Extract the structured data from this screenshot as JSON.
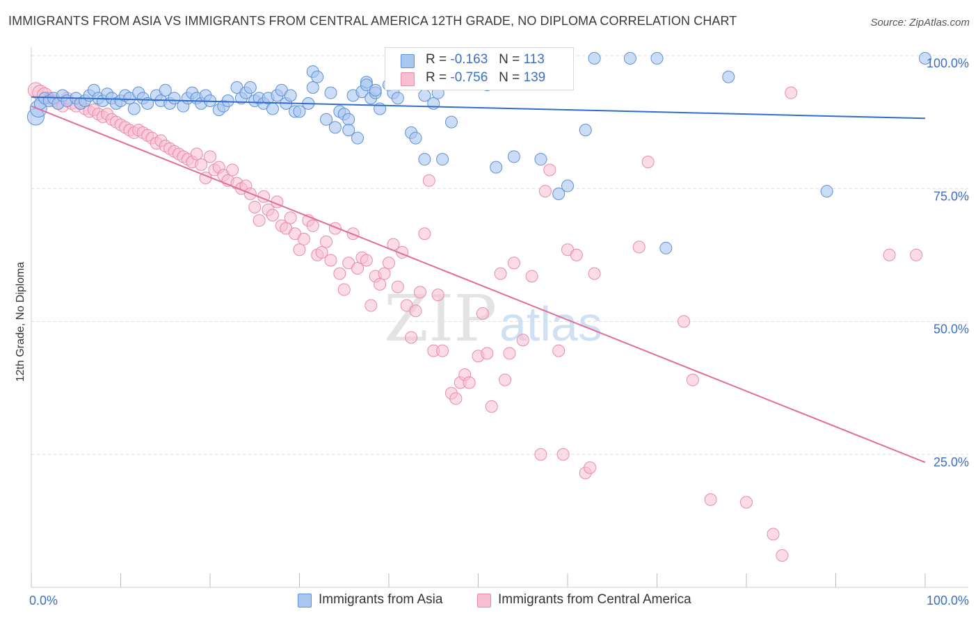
{
  "header": {
    "title": "IMMIGRANTS FROM ASIA VS IMMIGRANTS FROM CENTRAL AMERICA 12TH GRADE, NO DIPLOMA CORRELATION CHART",
    "source": "Source: ZipAtlas.com"
  },
  "watermark": {
    "zip": "ZIP",
    "atlas": "atlas"
  },
  "legend_top": {
    "rows": [
      {
        "r_label": "R =",
        "r_value": "-0.163",
        "n_label": "N =",
        "n_value": "113"
      },
      {
        "r_label": "R =",
        "r_value": "-0.756",
        "n_label": "N =",
        "n_value": "139"
      }
    ]
  },
  "legend_bottom": {
    "items": [
      "Immigrants from Asia",
      "Immigrants from Central America"
    ]
  },
  "colors": {
    "asia_fill": "#a9c6f0",
    "asia_stroke": "#5b8fd6",
    "asia_line": "#2e6ccf",
    "ca_fill": "#f8bfd2",
    "ca_stroke": "#e98aa9",
    "ca_line": "#e36b98",
    "grid": "#dddddd",
    "axis_text": "#3a6fc4"
  },
  "chart_data": {
    "type": "scatter",
    "title": "IMMIGRANTS FROM ASIA VS IMMIGRANTS FROM CENTRAL AMERICA 12TH GRADE, NO DIPLOMA CORRELATION CHART",
    "xlabel": "",
    "ylabel": "12th Grade, No Diploma",
    "xlim": [
      0,
      100
    ],
    "ylim": [
      0,
      100
    ],
    "x_tick_labels": [
      "0.0%",
      "100.0%"
    ],
    "y_ticks": [
      25,
      50,
      75,
      100
    ],
    "y_tick_labels": [
      "25.0%",
      "50.0%",
      "75.0%",
      "100.0%"
    ],
    "grid": true,
    "legend_position": "top-center",
    "series": [
      {
        "name": "Immigrants from Asia",
        "R": -0.163,
        "N": 113,
        "trend": {
          "x": [
            0,
            100
          ],
          "y": [
            92.2,
            88.2
          ]
        },
        "points": [
          [
            0.5,
            88.5
          ],
          [
            0.8,
            90
          ],
          [
            1,
            91
          ],
          [
            1.5,
            92
          ],
          [
            2,
            91.5
          ],
          [
            2.5,
            92
          ],
          [
            3,
            91
          ],
          [
            3.5,
            92.5
          ],
          [
            4,
            91.5
          ],
          [
            5,
            92
          ],
          [
            5.5,
            91
          ],
          [
            6,
            91.5
          ],
          [
            6.5,
            92.5
          ],
          [
            7,
            93.5
          ],
          [
            7.5,
            92
          ],
          [
            8,
            91.5
          ],
          [
            8.5,
            92.8
          ],
          [
            9,
            92
          ],
          [
            9.5,
            91
          ],
          [
            10,
            91.5
          ],
          [
            10.5,
            92.5
          ],
          [
            11,
            92
          ],
          [
            11.5,
            90
          ],
          [
            12,
            93
          ],
          [
            12.5,
            92
          ],
          [
            13,
            91
          ],
          [
            14,
            92.5
          ],
          [
            14.5,
            91.5
          ],
          [
            15,
            93.5
          ],
          [
            15.5,
            91
          ],
          [
            16,
            92
          ],
          [
            17,
            90.5
          ],
          [
            17.5,
            92
          ],
          [
            18,
            93
          ],
          [
            18.5,
            92
          ],
          [
            19,
            91
          ],
          [
            19.5,
            92.5
          ],
          [
            20,
            91.5
          ],
          [
            21,
            89.8
          ],
          [
            21.5,
            90.5
          ],
          [
            22,
            91.5
          ],
          [
            23,
            94
          ],
          [
            23.5,
            92
          ],
          [
            24,
            93
          ],
          [
            24.5,
            94
          ],
          [
            25,
            91.5
          ],
          [
            25.5,
            92
          ],
          [
            26,
            91
          ],
          [
            26.5,
            92
          ],
          [
            27,
            90
          ],
          [
            27.5,
            92.5
          ],
          [
            28,
            93.5
          ],
          [
            28.5,
            91
          ],
          [
            29,
            92.5
          ],
          [
            29.5,
            89.5
          ],
          [
            30,
            89.5
          ],
          [
            31,
            91
          ],
          [
            31.5,
            94
          ],
          [
            31.5,
            97
          ],
          [
            32,
            96
          ],
          [
            33,
            88
          ],
          [
            33.5,
            93
          ],
          [
            34,
            86.5
          ],
          [
            34.5,
            89.5
          ],
          [
            35,
            89
          ],
          [
            35.5,
            88
          ],
          [
            35.5,
            86
          ],
          [
            36,
            92.5
          ],
          [
            36.5,
            84.5
          ],
          [
            37,
            93.2
          ],
          [
            37.5,
            95
          ],
          [
            37.5,
            94.5
          ],
          [
            38,
            92
          ],
          [
            38.5,
            93
          ],
          [
            38.5,
            93.5
          ],
          [
            39,
            90
          ],
          [
            40,
            94.5
          ],
          [
            40.5,
            93
          ],
          [
            41,
            92
          ],
          [
            41.5,
            99
          ],
          [
            42,
            97
          ],
          [
            42.5,
            85.5
          ],
          [
            43,
            84.5
          ],
          [
            43.5,
            96
          ],
          [
            44,
            80.5
          ],
          [
            44,
            92.5
          ],
          [
            45,
            91
          ],
          [
            45.5,
            93
          ],
          [
            46,
            80.5
          ],
          [
            47,
            87.5
          ],
          [
            48,
            98
          ],
          [
            49,
            99
          ],
          [
            50,
            99.5
          ],
          [
            51,
            94.5
          ],
          [
            52,
            79
          ],
          [
            54,
            81
          ],
          [
            55,
            99.5
          ],
          [
            57,
            80.5
          ],
          [
            59,
            74
          ],
          [
            60,
            75.5
          ],
          [
            62,
            86
          ],
          [
            63,
            99.5
          ],
          [
            67,
            99.5
          ],
          [
            70,
            99.5
          ],
          [
            71,
            63.8
          ],
          [
            78,
            96
          ],
          [
            89,
            74.5
          ],
          [
            100,
            99.5
          ]
        ]
      },
      {
        "name": "Immigrants from Central America",
        "R": -0.756,
        "N": 139,
        "trend": {
          "x": [
            0,
            100
          ],
          "y": [
            90.5,
            23.5
          ]
        },
        "points": [
          [
            0.5,
            93.5
          ],
          [
            1,
            93
          ],
          [
            1.5,
            92.5
          ],
          [
            2,
            92
          ],
          [
            2.5,
            91.5
          ],
          [
            3,
            91
          ],
          [
            3.5,
            90.5
          ],
          [
            4,
            92
          ],
          [
            4.5,
            91
          ],
          [
            5,
            90.5
          ],
          [
            5.5,
            91
          ],
          [
            6,
            90
          ],
          [
            6.5,
            89.5
          ],
          [
            7,
            89.8
          ],
          [
            7.5,
            89
          ],
          [
            8,
            88.5
          ],
          [
            8.5,
            89
          ],
          [
            9,
            88
          ],
          [
            9.5,
            87.5
          ],
          [
            10,
            87
          ],
          [
            10.5,
            86.5
          ],
          [
            11,
            86
          ],
          [
            11.5,
            85.5
          ],
          [
            12,
            86
          ],
          [
            12.5,
            85.5
          ],
          [
            13,
            85
          ],
          [
            13.5,
            84.5
          ],
          [
            14,
            83.5
          ],
          [
            14.5,
            84
          ],
          [
            15,
            83
          ],
          [
            15.5,
            82.5
          ],
          [
            16,
            82
          ],
          [
            16.5,
            81.5
          ],
          [
            17,
            81
          ],
          [
            17.5,
            80.5
          ],
          [
            18,
            80
          ],
          [
            18.5,
            81.5
          ],
          [
            19,
            79.5
          ],
          [
            19.5,
            77
          ],
          [
            20,
            81
          ],
          [
            20.5,
            78.5
          ],
          [
            21,
            79
          ],
          [
            21.5,
            77.5
          ],
          [
            22,
            76.5
          ],
          [
            22.5,
            78.5
          ],
          [
            23,
            76
          ],
          [
            23.5,
            75
          ],
          [
            24,
            75.5
          ],
          [
            24.5,
            74
          ],
          [
            25,
            71.5
          ],
          [
            25.5,
            69
          ],
          [
            26,
            73.5
          ],
          [
            26.5,
            71
          ],
          [
            27,
            70
          ],
          [
            27.5,
            72.5
          ],
          [
            28,
            68
          ],
          [
            28.5,
            67.5
          ],
          [
            29,
            69.5
          ],
          [
            29.5,
            66.5
          ],
          [
            30,
            63.5
          ],
          [
            30.5,
            65.5
          ],
          [
            31,
            69
          ],
          [
            31.5,
            68
          ],
          [
            32,
            62.5
          ],
          [
            32.5,
            63
          ],
          [
            33,
            65
          ],
          [
            33.5,
            61.5
          ],
          [
            34,
            67.5
          ],
          [
            34.5,
            59
          ],
          [
            35,
            56
          ],
          [
            35.5,
            61
          ],
          [
            36,
            66.5
          ],
          [
            36.5,
            60
          ],
          [
            37,
            62
          ],
          [
            37.5,
            61.5
          ],
          [
            38,
            53
          ],
          [
            38.5,
            58.5
          ],
          [
            39,
            57
          ],
          [
            39.5,
            59
          ],
          [
            40,
            61
          ],
          [
            40.5,
            64.5
          ],
          [
            41,
            56.5
          ],
          [
            41.5,
            63
          ],
          [
            42,
            53
          ],
          [
            42.5,
            47
          ],
          [
            43,
            52
          ],
          [
            43.5,
            55.5
          ],
          [
            44,
            66.5
          ],
          [
            44.5,
            76.5
          ],
          [
            45,
            44.5
          ],
          [
            45.5,
            55
          ],
          [
            46,
            44.5
          ],
          [
            47,
            36.5
          ],
          [
            47.5,
            35.5
          ],
          [
            48,
            38.5
          ],
          [
            48.5,
            40
          ],
          [
            49,
            38.5
          ],
          [
            50,
            43.5
          ],
          [
            50.5,
            51.5
          ],
          [
            51,
            44
          ],
          [
            51.5,
            34
          ],
          [
            52.5,
            59
          ],
          [
            53,
            39
          ],
          [
            53.5,
            44
          ],
          [
            54,
            61
          ],
          [
            55,
            46.5
          ],
          [
            56,
            58.5
          ],
          [
            57,
            25
          ],
          [
            57.5,
            74.5
          ],
          [
            58,
            78.5
          ],
          [
            59,
            44.5
          ],
          [
            59.5,
            25
          ],
          [
            60,
            63.5
          ],
          [
            61,
            62.5
          ],
          [
            62,
            21.5
          ],
          [
            62.5,
            22.5
          ],
          [
            63,
            59
          ],
          [
            68,
            64
          ],
          [
            69,
            80
          ],
          [
            73,
            50
          ],
          [
            74,
            39
          ],
          [
            76,
            16.5
          ],
          [
            80,
            16
          ],
          [
            83,
            10
          ],
          [
            84,
            6
          ],
          [
            85,
            93
          ],
          [
            96,
            62.5
          ],
          [
            99,
            62.5
          ],
          [
            55,
            100
          ],
          [
            56,
            99.5
          ]
        ]
      }
    ]
  }
}
